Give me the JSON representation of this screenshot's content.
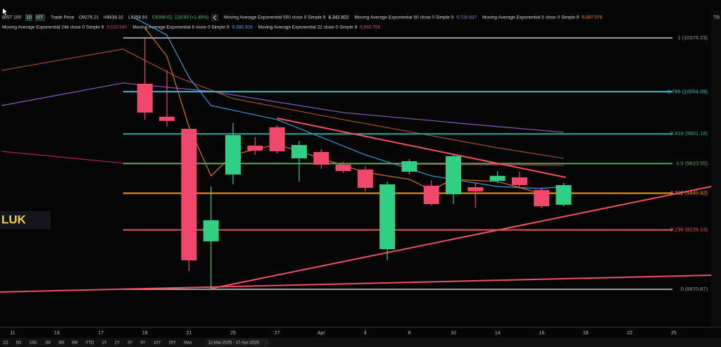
{
  "header": {
    "symbol": "BIST 100",
    "interval": "1D",
    "exchange": "IST",
    "field": "Trade Price",
    "open": "O9276.21",
    "high": "H9438.32",
    "low": "L9258.93",
    "close": "C9396.02",
    "change": "128.93 (+1.40%)"
  },
  "ma_legend": [
    {
      "name": "Moving Average Exponential 500 close 0 Simple 9",
      "value": "8,342.822",
      "color": "#ffffff"
    },
    {
      "name": "Moving Average Exponential 50 close 0 Simple 9",
      "value": "9,720.837",
      "color": "#9c7ae0"
    },
    {
      "name": "Moving Average Exponential 5 close 0 Simple 9",
      "value": "9,387.079",
      "color": "#ff7a1a"
    },
    {
      "name": "Moving Average Exponential 244 close 0 Simple 9",
      "value": "9,523.940",
      "color": "#e0306a"
    },
    {
      "name": "Moving Average Exponential 8 close 0 Simple 9",
      "value": "9,388.303",
      "color": "#42a5f5"
    },
    {
      "name": "Moving Average Exponential 22 close 0 Simple 9",
      "value": "9,565.755",
      "color": "#e0506a"
    }
  ],
  "side_label": "LUK",
  "timeframes": [
    "1D",
    "5D",
    "10D",
    "1M",
    "3M",
    "6M",
    "YTD",
    "1Y",
    "2Y",
    "3Y",
    "5Y",
    "10Y",
    "20Y",
    "Max"
  ],
  "date_range": "11-Mar-2025 - 17-Apr-2025",
  "chart_data": {
    "type": "candlestick",
    "categories": [
      "11",
      null,
      "13",
      null,
      "17",
      null,
      "19",
      null,
      "21",
      null,
      "25",
      null,
      "27",
      null,
      "Apr",
      null,
      "4",
      null,
      "8",
      null,
      "10",
      null,
      "14",
      null,
      "16",
      null,
      "18",
      null,
      "22",
      null,
      "25",
      null
    ],
    "open": [
      null,
      null,
      null,
      null,
      null,
      null,
      10102,
      9904,
      9832,
      9158,
      9558,
      9731,
      9841,
      9655,
      9693,
      9617,
      9588,
      9111,
      9575,
      9491,
      9440,
      9482,
      9520,
      9541,
      9465,
      9377,
      null,
      null,
      null,
      null,
      null,
      null
    ],
    "high": [
      null,
      null,
      null,
      null,
      null,
      null,
      10372,
      10182,
      9832,
      9486,
      9866,
      9782,
      9853,
      9760,
      9710,
      9634,
      9609,
      9516,
      9651,
      9524,
      9676,
      9508,
      9579,
      9575,
      9482,
      9508,
      null,
      null,
      null,
      null,
      null,
      null
    ],
    "low": [
      null,
      null,
      null,
      null,
      null,
      null,
      9887,
      9845,
      8981,
      8875,
      9499,
      9676,
      9685,
      9516,
      9592,
      9567,
      9457,
      9044,
      9558,
      9373,
      9381,
      9360,
      9508,
      9474,
      9356,
      9368,
      null,
      null,
      null,
      null,
      null,
      null
    ],
    "close": [
      null,
      null,
      null,
      null,
      null,
      null,
      9929,
      9879,
      9044,
      9284,
      9794,
      9701,
      9697,
      9735,
      9617,
      9579,
      9478,
      9499,
      9638,
      9381,
      9668,
      9457,
      9550,
      9495,
      9368,
      9495,
      null,
      null,
      null,
      null,
      null,
      null
    ],
    "up_color": "#2fd083",
    "down_color": "#f0476a",
    "ylim": [
      8643,
      10540
    ],
    "grid": false,
    "fib_levels": [
      {
        "label": "1 (10376.23)",
        "value": 10376.23,
        "color": "#9a9a9a"
      },
      {
        "label": "0.786 (10054.09)",
        "value": 10054.09,
        "color": "#2bc0e4"
      },
      {
        "label": "0.618 (9801.18)",
        "value": 9801.18,
        "color": "#26a69a"
      },
      {
        "label": "0.5 (9623.55)",
        "value": 9623.55,
        "color": "#4caf50"
      },
      {
        "label": "0.382 (9445.92)",
        "value": 9445.92,
        "color": "#ff9800"
      },
      {
        "label": "0.236 (9226.14)",
        "value": 9226.14,
        "color": "#ef5350"
      },
      {
        "label": "0 (8870.87)",
        "value": 8870.87,
        "color": "#9a9a9a"
      }
    ],
    "ma_lines": [
      {
        "color": "#8a5ab8",
        "x": [
          -0.5,
          5,
          9,
          15,
          22,
          25
        ],
        "values": [
          9971,
          10106,
          10056,
          9929,
          9845,
          9811
        ]
      },
      {
        "color": "#a0522d",
        "x": [
          -0.5,
          5,
          7.5,
          10,
          15,
          22,
          25
        ],
        "values": [
          10182,
          10309,
          10140,
          10013,
          9887,
          9718,
          9655
        ]
      },
      {
        "color": "#b0204f",
        "x": [
          -0.5,
          5,
          12,
          25
        ],
        "values": [
          9697,
          9626,
          9626,
          9613
        ]
      },
      {
        "color": "#3a9ad8",
        "x": [
          5.5,
          7,
          8,
          9,
          12,
          16,
          19,
          22,
          24,
          25
        ],
        "values": [
          10498,
          10393,
          10140,
          9971,
          9887,
          9676,
          9550,
          9486,
          9474,
          9486
        ]
      },
      {
        "color": "#d9731a",
        "x": [
          6,
          7,
          8,
          9,
          10,
          12,
          14,
          16,
          18,
          19,
          20,
          22,
          24,
          25
        ],
        "values": [
          10435,
          10266,
          9845,
          9550,
          9676,
          9739,
          9655,
          9571,
          9529,
          9465,
          9529,
          9516,
          9444,
          9444
        ]
      }
    ],
    "trendlines": [
      {
        "color": "#ef4f63",
        "x": [
          12,
          25.1
        ],
        "values": [
          9895,
          9541
        ]
      },
      {
        "color": "#ef4f63",
        "x": [
          9,
          31.7
        ],
        "values": [
          8875,
          9486
        ]
      },
      {
        "color": "#ef4f63",
        "x": [
          -0.6,
          31.7
        ],
        "values": [
          8854,
          8955
        ]
      }
    ]
  }
}
